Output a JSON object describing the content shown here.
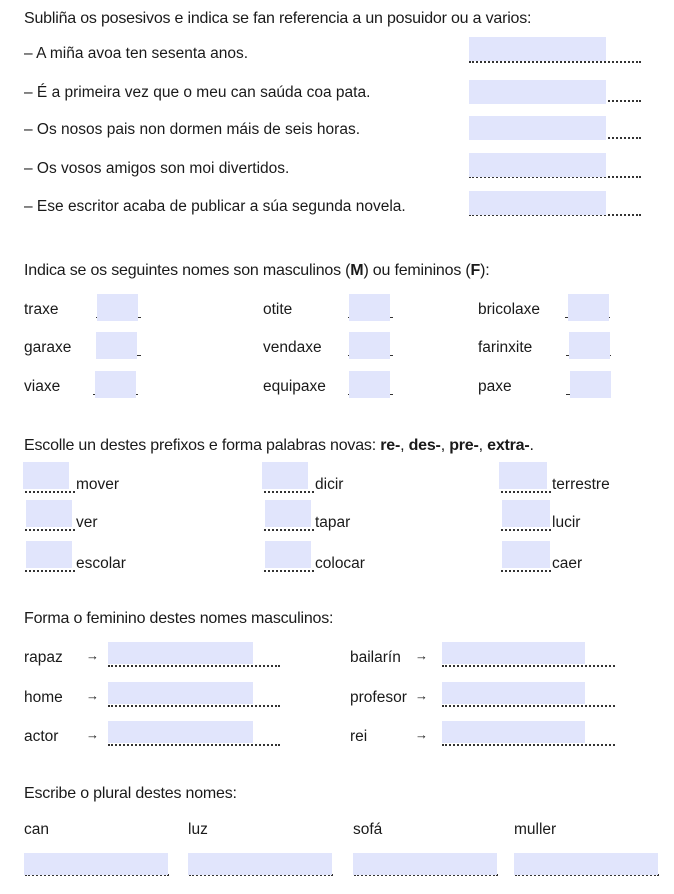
{
  "section1": {
    "heading": "Subliña os posesivos e indica se fan referencia a un posuidor ou a varios:",
    "items": [
      {
        "text": "– A miña avoa ten sesenta anos.",
        "value": ""
      },
      {
        "text": "– É a primeira vez que o meu can saúda coa pata.",
        "value": ""
      },
      {
        "text": "– Os nosos pais non dormen máis de seis horas.",
        "value": ""
      },
      {
        "text": "– Os vosos amigos son moi divertidos.",
        "value": ""
      },
      {
        "text": "– Ese escritor acaba de publicar a súa segunda novela.",
        "value": ""
      }
    ]
  },
  "section2": {
    "heading_pre": "Indica se os seguintes nomes son masculinos (",
    "heading_m": "M",
    "heading_mid": ") ou femininos (",
    "heading_f": "F",
    "heading_post": "):",
    "items": [
      {
        "word": "traxe",
        "value": ""
      },
      {
        "word": "otite",
        "value": ""
      },
      {
        "word": "bricolaxe",
        "value": ""
      },
      {
        "word": "garaxe",
        "value": ""
      },
      {
        "word": "vendaxe",
        "value": ""
      },
      {
        "word": "farinxite",
        "value": ""
      },
      {
        "word": "viaxe",
        "value": ""
      },
      {
        "word": "equipaxe",
        "value": ""
      },
      {
        "word": "paxe",
        "value": ""
      }
    ]
  },
  "section3": {
    "heading_pre": "Escolle un destes prefixos e forma palabras novas: ",
    "prefixes": [
      "re-",
      "des-",
      "pre-",
      "extra-"
    ],
    "items": [
      {
        "word": "mover",
        "value": ""
      },
      {
        "word": "dicir",
        "value": ""
      },
      {
        "word": "terrestre",
        "value": ""
      },
      {
        "word": "ver",
        "value": ""
      },
      {
        "word": "tapar",
        "value": ""
      },
      {
        "word": "lucir",
        "value": ""
      },
      {
        "word": "escolar",
        "value": ""
      },
      {
        "word": "colocar",
        "value": ""
      },
      {
        "word": "caer",
        "value": ""
      }
    ]
  },
  "section4": {
    "heading": "Forma o feminino destes nomes masculinos:",
    "arrow": "→",
    "items": [
      {
        "word": "rapaz",
        "value": ""
      },
      {
        "word": "bailarín",
        "value": ""
      },
      {
        "word": "home",
        "value": ""
      },
      {
        "word": "profesor",
        "value": ""
      },
      {
        "word": "actor",
        "value": ""
      },
      {
        "word": "rei",
        "value": ""
      }
    ]
  },
  "section5": {
    "heading": "Escribe o plural destes nomes:",
    "items": [
      {
        "word": "can",
        "value": ""
      },
      {
        "word": "luz",
        "value": ""
      },
      {
        "word": "sofá",
        "value": ""
      },
      {
        "word": "muller",
        "value": ""
      }
    ]
  },
  "colors": {
    "field_fill": "#e1e5fc",
    "text": "#1a1a1a"
  }
}
